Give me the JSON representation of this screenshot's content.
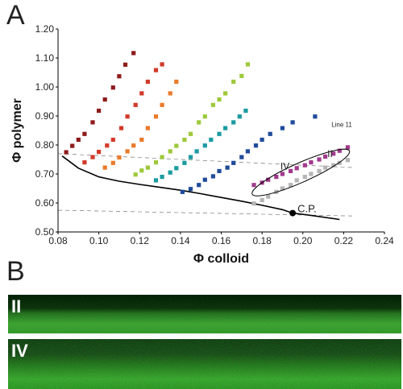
{
  "panels": {
    "a_label": "A",
    "b_label": "B"
  },
  "chart_data": {
    "type": "scatter",
    "xlabel": "Φ colloid",
    "ylabel": "Φ polymer",
    "xlim": [
      0.08,
      0.24
    ],
    "ylim": [
      0.5,
      1.2
    ],
    "xticks": [
      "0.08",
      "0.10",
      "0.12",
      "0.14",
      "0.16",
      "0.18",
      "0.20",
      "0.22",
      "0.24"
    ],
    "yticks": [
      "0.50",
      "0.60",
      "0.70",
      "0.80",
      "0.90",
      "1.00",
      "1.10",
      "1.20"
    ],
    "annotations": {
      "line_label": "Line 11",
      "region_ii": "II",
      "region_iv": "IV",
      "critical_point": "C.P."
    },
    "critical_point": [
      0.195,
      0.565
    ],
    "binodal": [
      [
        0.082,
        0.762
      ],
      [
        0.09,
        0.72
      ],
      [
        0.1,
        0.69
      ],
      [
        0.11,
        0.675
      ],
      [
        0.12,
        0.664
      ],
      [
        0.13,
        0.654
      ],
      [
        0.14,
        0.644
      ],
      [
        0.15,
        0.632
      ],
      [
        0.16,
        0.619
      ],
      [
        0.17,
        0.606
      ],
      [
        0.18,
        0.592
      ],
      [
        0.19,
        0.577
      ],
      [
        0.195,
        0.565
      ],
      [
        0.205,
        0.556
      ],
      [
        0.218,
        0.543
      ]
    ],
    "tielines": [
      [
        [
          0.08,
          0.77
        ],
        [
          0.225,
          0.722
        ]
      ],
      [
        [
          0.08,
          0.575
        ],
        [
          0.225,
          0.555
        ]
      ]
    ],
    "series": [
      {
        "color": "#8e1b1b",
        "points": [
          [
            0.084,
            0.775
          ],
          [
            0.087,
            0.797
          ],
          [
            0.09,
            0.818
          ],
          [
            0.093,
            0.838
          ],
          [
            0.097,
            0.878
          ],
          [
            0.1,
            0.918
          ],
          [
            0.103,
            0.957
          ],
          [
            0.107,
            0.998
          ],
          [
            0.11,
            1.037
          ],
          [
            0.113,
            1.077
          ],
          [
            0.117,
            1.117
          ]
        ]
      },
      {
        "color": "#d23a2a",
        "points": [
          [
            0.093,
            0.74
          ],
          [
            0.097,
            0.758
          ],
          [
            0.1,
            0.776
          ],
          [
            0.104,
            0.798
          ],
          [
            0.107,
            0.818
          ],
          [
            0.111,
            0.858
          ],
          [
            0.114,
            0.898
          ],
          [
            0.118,
            0.938
          ],
          [
            0.121,
            0.978
          ],
          [
            0.124,
            1.018
          ],
          [
            0.128,
            1.058
          ],
          [
            0.131,
            1.078
          ]
        ]
      },
      {
        "color": "#e97a2b",
        "points": [
          [
            0.103,
            0.722
          ],
          [
            0.107,
            0.738
          ],
          [
            0.11,
            0.757
          ],
          [
            0.114,
            0.778
          ],
          [
            0.117,
            0.798
          ],
          [
            0.121,
            0.818
          ],
          [
            0.124,
            0.858
          ],
          [
            0.128,
            0.898
          ],
          [
            0.131,
            0.938
          ],
          [
            0.135,
            0.978
          ],
          [
            0.138,
            1.018
          ]
        ]
      },
      {
        "color": "#9dc93a",
        "points": [
          [
            0.118,
            0.698
          ],
          [
            0.121,
            0.712
          ],
          [
            0.124,
            0.722
          ],
          [
            0.128,
            0.74
          ],
          [
            0.131,
            0.758
          ],
          [
            0.135,
            0.778
          ],
          [
            0.138,
            0.797
          ],
          [
            0.142,
            0.818
          ],
          [
            0.145,
            0.838
          ],
          [
            0.149,
            0.878
          ],
          [
            0.152,
            0.898
          ],
          [
            0.156,
            0.938
          ],
          [
            0.159,
            0.957
          ],
          [
            0.162,
            0.978
          ],
          [
            0.166,
            1.018
          ],
          [
            0.17,
            1.038
          ],
          [
            0.173,
            1.078
          ]
        ]
      },
      {
        "color": "#1a9ba0",
        "points": [
          [
            0.128,
            0.678
          ],
          [
            0.131,
            0.69
          ],
          [
            0.135,
            0.705
          ],
          [
            0.138,
            0.72
          ],
          [
            0.142,
            0.738
          ],
          [
            0.145,
            0.758
          ],
          [
            0.148,
            0.778
          ],
          [
            0.152,
            0.798
          ],
          [
            0.155,
            0.818
          ],
          [
            0.159,
            0.838
          ],
          [
            0.162,
            0.858
          ],
          [
            0.166,
            0.878
          ],
          [
            0.169,
            0.898
          ],
          [
            0.172,
            0.918
          ]
        ]
      },
      {
        "color": "#1f4b9a",
        "points": [
          [
            0.141,
            0.638
          ],
          [
            0.145,
            0.648
          ],
          [
            0.149,
            0.662
          ],
          [
            0.152,
            0.68
          ],
          [
            0.156,
            0.692
          ],
          [
            0.159,
            0.71
          ],
          [
            0.163,
            0.722
          ],
          [
            0.166,
            0.738
          ],
          [
            0.17,
            0.758
          ],
          [
            0.173,
            0.778
          ],
          [
            0.177,
            0.798
          ],
          [
            0.18,
            0.818
          ],
          [
            0.184,
            0.838
          ],
          [
            0.19,
            0.858
          ],
          [
            0.195,
            0.878
          ],
          [
            0.206,
            0.898
          ]
        ]
      },
      {
        "color": "#a23a8e",
        "points": [
          [
            0.176,
            0.662
          ],
          [
            0.18,
            0.67
          ],
          [
            0.183,
            0.68
          ],
          [
            0.187,
            0.69
          ],
          [
            0.19,
            0.7
          ],
          [
            0.194,
            0.71
          ],
          [
            0.197,
            0.72
          ],
          [
            0.201,
            0.73
          ],
          [
            0.204,
            0.74
          ],
          [
            0.208,
            0.75
          ],
          [
            0.211,
            0.76
          ],
          [
            0.215,
            0.77
          ],
          [
            0.218,
            0.78
          ],
          [
            0.222,
            0.792
          ]
        ]
      },
      {
        "color": "#b5b5b5",
        "points": [
          [
            0.176,
            0.598
          ],
          [
            0.18,
            0.61
          ],
          [
            0.183,
            0.622
          ],
          [
            0.187,
            0.638
          ],
          [
            0.19,
            0.65
          ],
          [
            0.194,
            0.662
          ],
          [
            0.197,
            0.678
          ],
          [
            0.201,
            0.69
          ],
          [
            0.204,
            0.7
          ],
          [
            0.208,
            0.71
          ],
          [
            0.211,
            0.722
          ],
          [
            0.215,
            0.73
          ],
          [
            0.218,
            0.738
          ],
          [
            0.222,
            0.748
          ]
        ]
      }
    ]
  },
  "micrographs": [
    {
      "label": "II"
    },
    {
      "label": "IV"
    }
  ]
}
